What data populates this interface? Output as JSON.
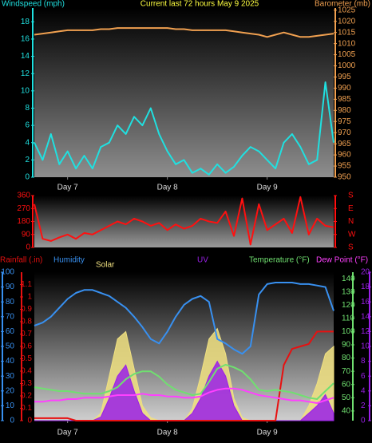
{
  "chart_data": [
    {
      "type": "line",
      "title": "Current last 72 hours May 9 2025",
      "title_color": "#ffff40",
      "x": [
        0,
        2,
        4,
        6,
        8,
        10,
        12,
        14,
        16,
        18,
        20,
        22,
        24,
        26,
        28,
        30,
        32,
        34,
        36,
        38,
        40,
        42,
        44,
        46,
        48,
        50,
        52,
        54,
        56,
        58,
        60,
        62,
        64,
        66,
        68,
        70,
        72
      ],
      "xlim": [
        0,
        72
      ],
      "xticks": [
        {
          "value": 8,
          "label": "Day 7"
        },
        {
          "value": 32,
          "label": "Day 8"
        },
        {
          "value": 56,
          "label": "Day 9"
        }
      ],
      "ylim": [
        0,
        19.6
      ],
      "yticks": [
        0,
        2,
        4,
        6,
        8,
        10,
        12,
        14,
        16,
        18
      ],
      "y2lim": [
        950,
        1026
      ],
      "y2ticks": [
        950,
        955,
        960,
        965,
        970,
        975,
        980,
        985,
        990,
        995,
        1000,
        1005,
        1010,
        1015,
        1020,
        1025
      ],
      "series": [
        {
          "name": "Windspeed (mph)",
          "color": "#20e0e0",
          "axis": "y",
          "values": [
            4,
            2,
            5,
            1.5,
            3,
            1,
            2.5,
            1,
            3.5,
            4,
            6,
            5,
            7,
            6,
            8,
            5,
            3,
            1.5,
            2,
            0.5,
            1,
            0.3,
            1.5,
            0.5,
            1.2,
            2.5,
            3.5,
            3,
            2,
            1,
            4,
            5,
            3.5,
            1.5,
            2,
            11,
            4
          ]
        },
        {
          "name": "Barometer (mb)",
          "color": "#f0a050",
          "axis": "y2",
          "values": [
            1014,
            1014.5,
            1015,
            1015.5,
            1016,
            1016,
            1016,
            1016,
            1016.5,
            1016.5,
            1017,
            1017,
            1017,
            1017,
            1017,
            1017,
            1017,
            1016.5,
            1016.5,
            1016,
            1016,
            1016,
            1016,
            1016,
            1015.5,
            1015,
            1014.5,
            1014,
            1013,
            1014,
            1015,
            1014,
            1013,
            1013,
            1013.5,
            1014,
            1014.5
          ]
        }
      ]
    },
    {
      "type": "line",
      "x": [
        0,
        2,
        4,
        6,
        8,
        10,
        12,
        14,
        16,
        18,
        20,
        22,
        24,
        26,
        28,
        30,
        32,
        34,
        36,
        38,
        40,
        42,
        44,
        46,
        48,
        50,
        52,
        54,
        56,
        58,
        60,
        62,
        64,
        66,
        68,
        70,
        72
      ],
      "xlim": [
        0,
        72
      ],
      "ylim": [
        0,
        360
      ],
      "yticks": [
        0,
        90,
        180,
        270,
        360
      ],
      "y2lim": [
        0,
        360
      ],
      "y2ticks": [
        {
          "value": 0,
          "label": "S"
        },
        {
          "value": 90,
          "label": "W"
        },
        {
          "value": 180,
          "label": "N"
        },
        {
          "value": 270,
          "label": "E"
        },
        {
          "value": 360,
          "label": "S"
        }
      ],
      "series": [
        {
          "color": "#ff1010",
          "axis": "y",
          "values": [
            300,
            60,
            45,
            70,
            90,
            60,
            100,
            90,
            120,
            150,
            180,
            160,
            200,
            180,
            150,
            170,
            120,
            160,
            130,
            150,
            200,
            180,
            170,
            250,
            80,
            340,
            20,
            300,
            120,
            160,
            200,
            100,
            350,
            90,
            200,
            150,
            140
          ]
        }
      ]
    },
    {
      "type": "line",
      "x": [
        0,
        2,
        4,
        6,
        8,
        10,
        12,
        14,
        16,
        18,
        20,
        22,
        24,
        26,
        28,
        30,
        32,
        34,
        36,
        38,
        40,
        42,
        44,
        46,
        48,
        50,
        52,
        54,
        56,
        58,
        60,
        62,
        64,
        66,
        68,
        70,
        72
      ],
      "xlim": [
        0,
        72
      ],
      "xticks": [
        {
          "value": 8,
          "label": "Day 7"
        },
        {
          "value": 32,
          "label": "Day 8"
        },
        {
          "value": 56,
          "label": "Day 9"
        }
      ],
      "ylim": [
        0,
        1.2
      ],
      "yticks": [
        0,
        0.1,
        0.2,
        0.3,
        0.4,
        0.5,
        0.6,
        0.7,
        0.8,
        0.9,
        1,
        1.1
      ],
      "y2lim": [
        32.7,
        144.9
      ],
      "y2ticks": [
        40,
        50,
        60,
        70,
        80,
        90,
        100,
        110,
        120,
        130,
        140
      ],
      "y3lim": [
        0,
        100
      ],
      "y3ticks": [
        0,
        10,
        20,
        30,
        40,
        50,
        60,
        70,
        80,
        90,
        100
      ],
      "y4lim": [
        0,
        20
      ],
      "y4ticks": [
        0,
        2,
        4,
        6,
        8,
        10,
        12,
        14,
        16,
        18,
        20
      ],
      "series": [
        {
          "name": "Rainfall (.in)",
          "color": "#e81010",
          "axis": "y",
          "values": [
            0.02,
            0.02,
            0.02,
            0.02,
            0.02,
            0,
            0,
            0,
            0,
            0,
            0,
            0,
            0,
            0,
            0,
            0,
            0,
            0,
            0,
            0,
            0,
            0,
            0,
            0,
            0,
            0,
            0,
            0,
            0,
            0,
            0.45,
            0.58,
            0.6,
            0.62,
            0.72,
            0.72,
            0.72
          ]
        },
        {
          "name": "Humidity",
          "color": "#3890f0",
          "axis": "y3",
          "values": [
            64,
            66,
            70,
            76,
            82,
            86,
            88,
            88,
            86,
            84,
            80,
            76,
            70,
            63,
            55,
            52,
            60,
            70,
            78,
            82,
            84,
            80,
            55,
            52,
            48,
            45,
            50,
            85,
            92,
            93,
            93,
            93,
            92,
            92,
            91,
            90,
            74
          ]
        },
        {
          "name": "Solar",
          "color": "#f0e080",
          "axis": "y3",
          "fill": true,
          "values": [
            0,
            0,
            0,
            0,
            0,
            0,
            0,
            0,
            5,
            30,
            55,
            60,
            35,
            10,
            2,
            0,
            0,
            0,
            0,
            8,
            30,
            55,
            62,
            45,
            15,
            2,
            0,
            0,
            0,
            0,
            0,
            0,
            0,
            10,
            25,
            45,
            50
          ]
        },
        {
          "name": "UV",
          "color": "#9a20e8",
          "axis": "y4",
          "fill": true,
          "values": [
            0,
            0,
            0,
            0,
            0,
            0,
            0,
            0,
            0.5,
            3,
            6,
            7.5,
            4,
            1,
            0,
            0,
            0,
            0,
            0,
            1,
            3,
            6,
            8,
            6,
            2,
            0,
            0,
            0,
            0,
            0,
            0,
            0,
            0,
            1,
            2,
            3.5,
            1
          ]
        },
        {
          "name": "Temperature (°F)",
          "color": "#70e070",
          "axis": "y2",
          "values": [
            58,
            57,
            56,
            55,
            55,
            54,
            53,
            53,
            53,
            55,
            58,
            64,
            68,
            70,
            70,
            66,
            60,
            56,
            54,
            52,
            53,
            62,
            72,
            75,
            73,
            70,
            64,
            56,
            55,
            56,
            55,
            54,
            52,
            50,
            49,
            55,
            61
          ]
        },
        {
          "name": "Dew Point (°F)",
          "color": "#ff40ff",
          "axis": "y",
          "axis_ref": "y2",
          "values": [
            47,
            47,
            48,
            48,
            49,
            49,
            50,
            50,
            50,
            51,
            52,
            52,
            52,
            53,
            52,
            52,
            51,
            51,
            50,
            50,
            51,
            54,
            56,
            57,
            57,
            56,
            54,
            52,
            51,
            50,
            49,
            48,
            48,
            47,
            46,
            48,
            50
          ]
        }
      ]
    }
  ]
}
